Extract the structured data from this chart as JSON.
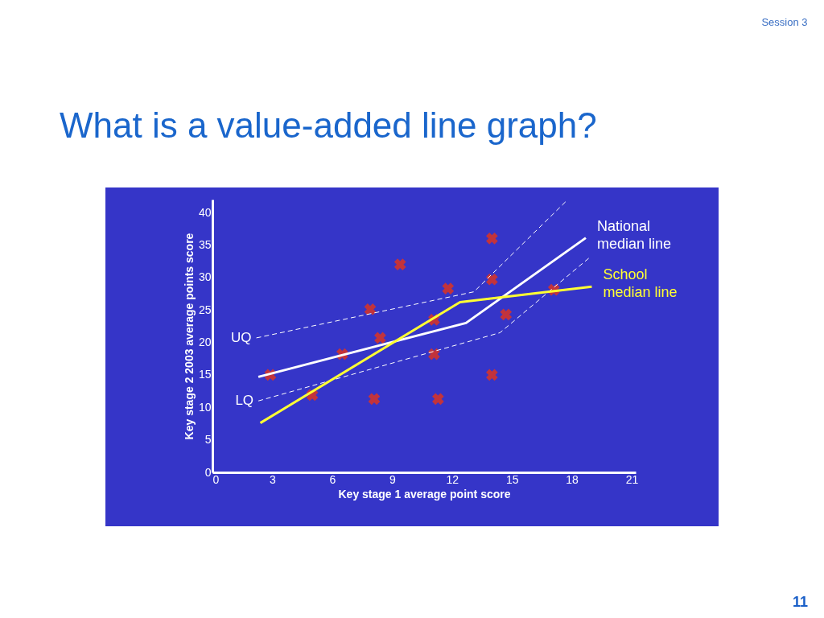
{
  "chart_data": {
    "type": "scatter",
    "title": "What is a value-added line graph?",
    "xlabel": "Key stage 1 average point score",
    "ylabel": "Key stage 2 2003 average points score",
    "xlim": [
      0,
      21.2
    ],
    "ylim": [
      0,
      42
    ],
    "xticks": [
      0,
      3,
      6,
      9,
      12,
      15,
      18,
      21
    ],
    "yticks": [
      0,
      5,
      10,
      15,
      20,
      25,
      30,
      35,
      40
    ],
    "grid": false,
    "annotations": [
      "Session 3",
      "11"
    ],
    "series": [
      {
        "marker": "cross",
        "color": "#ff3300",
        "x": [
          2.9,
          5.0,
          6.5,
          7.9,
          8.1,
          8.4,
          9.4,
          11.1,
          11.1,
          11.3,
          11.8,
          14.0,
          14.0,
          14.0,
          14.7,
          17.1
        ],
        "values": [
          15.0,
          11.9,
          18.2,
          25.1,
          11.3,
          20.7,
          32.0,
          23.5,
          18.2,
          11.3,
          28.3,
          36.0,
          29.7,
          15.0,
          24.3,
          28.1
        ]
      },
      {
        "type": "line",
        "name": "UQ",
        "color": "#ffffff",
        "line_style": "dashed",
        "x": [
          2.2,
          13.1,
          17.7
        ],
        "values": [
          20.7,
          27.8,
          41.7
        ]
      },
      {
        "type": "line",
        "name": "LQ",
        "color": "#ffffff",
        "line_style": "dashed",
        "x": [
          2.3,
          14.4,
          18.9
        ],
        "values": [
          11.0,
          21.5,
          33.1
        ]
      },
      {
        "type": "line",
        "name": "National median line",
        "color": "#ffffff",
        "line_style": "solid",
        "x": [
          2.3,
          12.7,
          18.7
        ],
        "values": [
          14.7,
          23.0,
          36.1
        ]
      },
      {
        "type": "line",
        "name": "School median line",
        "color": "#ffff33",
        "line_style": "solid",
        "x": [
          2.4,
          12.4,
          19.0
        ],
        "values": [
          7.6,
          26.2,
          28.6
        ]
      }
    ]
  }
}
